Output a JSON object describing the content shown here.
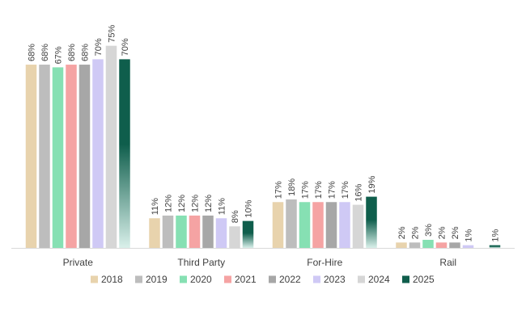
{
  "chart_data": {
    "type": "bar",
    "categories": [
      "Private",
      "Third Party",
      "For-Hire",
      "Rail"
    ],
    "series": [
      {
        "name": "2018",
        "values": [
          68,
          11,
          17,
          2
        ],
        "labels": [
          "68%",
          "11%",
          "17%",
          "2%"
        ],
        "color": "#e8d3ad"
      },
      {
        "name": "2019",
        "values": [
          68,
          12,
          18,
          2
        ],
        "labels": [
          "68%",
          "12%",
          "18%",
          "2%"
        ],
        "color": "#bdbdbd"
      },
      {
        "name": "2020",
        "values": [
          67,
          12,
          17,
          3
        ],
        "labels": [
          "67%",
          "12%",
          "17%",
          "3%"
        ],
        "color": "#86e0b3"
      },
      {
        "name": "2021",
        "values": [
          68,
          12,
          17,
          2
        ],
        "labels": [
          "68%",
          "12%",
          "17%",
          "2%"
        ],
        "color": "#f5a3a3"
      },
      {
        "name": "2022",
        "values": [
          68,
          12,
          17,
          2
        ],
        "labels": [
          "68%",
          "12%",
          "17%",
          "2%"
        ],
        "color": "#a7a7a7"
      },
      {
        "name": "2023",
        "values": [
          70,
          11,
          17,
          1
        ],
        "labels": [
          "70%",
          "11%",
          "17%",
          "1%"
        ],
        "color": "#cfc9f5"
      },
      {
        "name": "2024",
        "values": [
          75,
          8,
          16,
          null
        ],
        "labels": [
          "75%",
          "8%",
          "16%",
          ""
        ],
        "color": "#d6d6d6"
      },
      {
        "name": "2025",
        "values": [
          70,
          10,
          19,
          1
        ],
        "labels": [
          "70%",
          "10%",
          "19%",
          "1%"
        ],
        "color": "#0f5e4c",
        "gradient_fade_to": "#d9f0ea"
      }
    ],
    "ylim": [
      0,
      80
    ],
    "grid": false,
    "legend_position": "bottom"
  }
}
